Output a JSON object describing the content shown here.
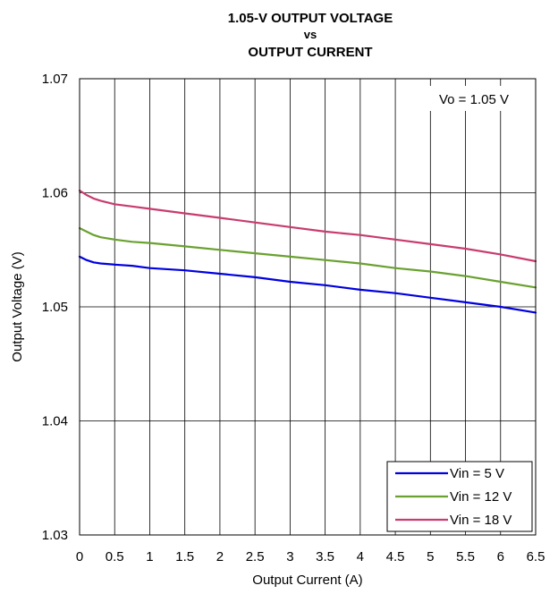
{
  "chart_data": {
    "type": "line",
    "title_lines": [
      "1.05-V OUTPUT VOLTAGE",
      "vs",
      "OUTPUT CURRENT"
    ],
    "xlabel": "Output Current (A)",
    "ylabel": "Output Voltage (V)",
    "xlim": [
      0,
      6.5
    ],
    "ylim": [
      1.03,
      1.07
    ],
    "x_ticks": [
      "0",
      "0.5",
      "1",
      "1.5",
      "2",
      "2.5",
      "3",
      "3.5",
      "4",
      "4.5",
      "5",
      "5.5",
      "6",
      "6.5"
    ],
    "y_ticks": [
      "1.03",
      "1.04",
      "1.05",
      "1.06",
      "1.07"
    ],
    "annotation": "Vo = 1.05 V",
    "grid": true,
    "legend_position": "bottom-right",
    "series": [
      {
        "name": "Vin = 5 V",
        "color": "#0000e0",
        "x": [
          0,
          0.1,
          0.2,
          0.3,
          0.5,
          0.75,
          1,
          1.5,
          2,
          2.5,
          3,
          3.5,
          4,
          4.5,
          5,
          5.5,
          6,
          6.5
        ],
        "y": [
          1.0544,
          1.0541,
          1.0539,
          1.0538,
          1.0537,
          1.0536,
          1.0534,
          1.0532,
          1.0529,
          1.0526,
          1.0522,
          1.0519,
          1.0515,
          1.0512,
          1.0508,
          1.0504,
          1.05,
          1.0495
        ]
      },
      {
        "name": "Vin = 12 V",
        "color": "#6aa130",
        "x": [
          0,
          0.1,
          0.2,
          0.3,
          0.5,
          0.75,
          1,
          1.5,
          2,
          2.5,
          3,
          3.5,
          4,
          4.5,
          5,
          5.5,
          6,
          6.5
        ],
        "y": [
          1.0569,
          1.0566,
          1.0563,
          1.0561,
          1.0559,
          1.0557,
          1.0556,
          1.0553,
          1.055,
          1.0547,
          1.0544,
          1.0541,
          1.0538,
          1.0534,
          1.0531,
          1.0527,
          1.0522,
          1.0517
        ]
      },
      {
        "name": "Vin = 18 V",
        "color": "#c83c6e",
        "x": [
          0,
          0.1,
          0.2,
          0.3,
          0.5,
          0.75,
          1,
          1.5,
          2,
          2.5,
          3,
          3.5,
          4,
          4.5,
          5,
          5.5,
          6,
          6.5
        ],
        "y": [
          1.0602,
          1.0598,
          1.0595,
          1.0593,
          1.059,
          1.0588,
          1.0586,
          1.0582,
          1.0578,
          1.0574,
          1.057,
          1.0566,
          1.0563,
          1.0559,
          1.0555,
          1.0551,
          1.0546,
          1.054
        ]
      }
    ]
  }
}
